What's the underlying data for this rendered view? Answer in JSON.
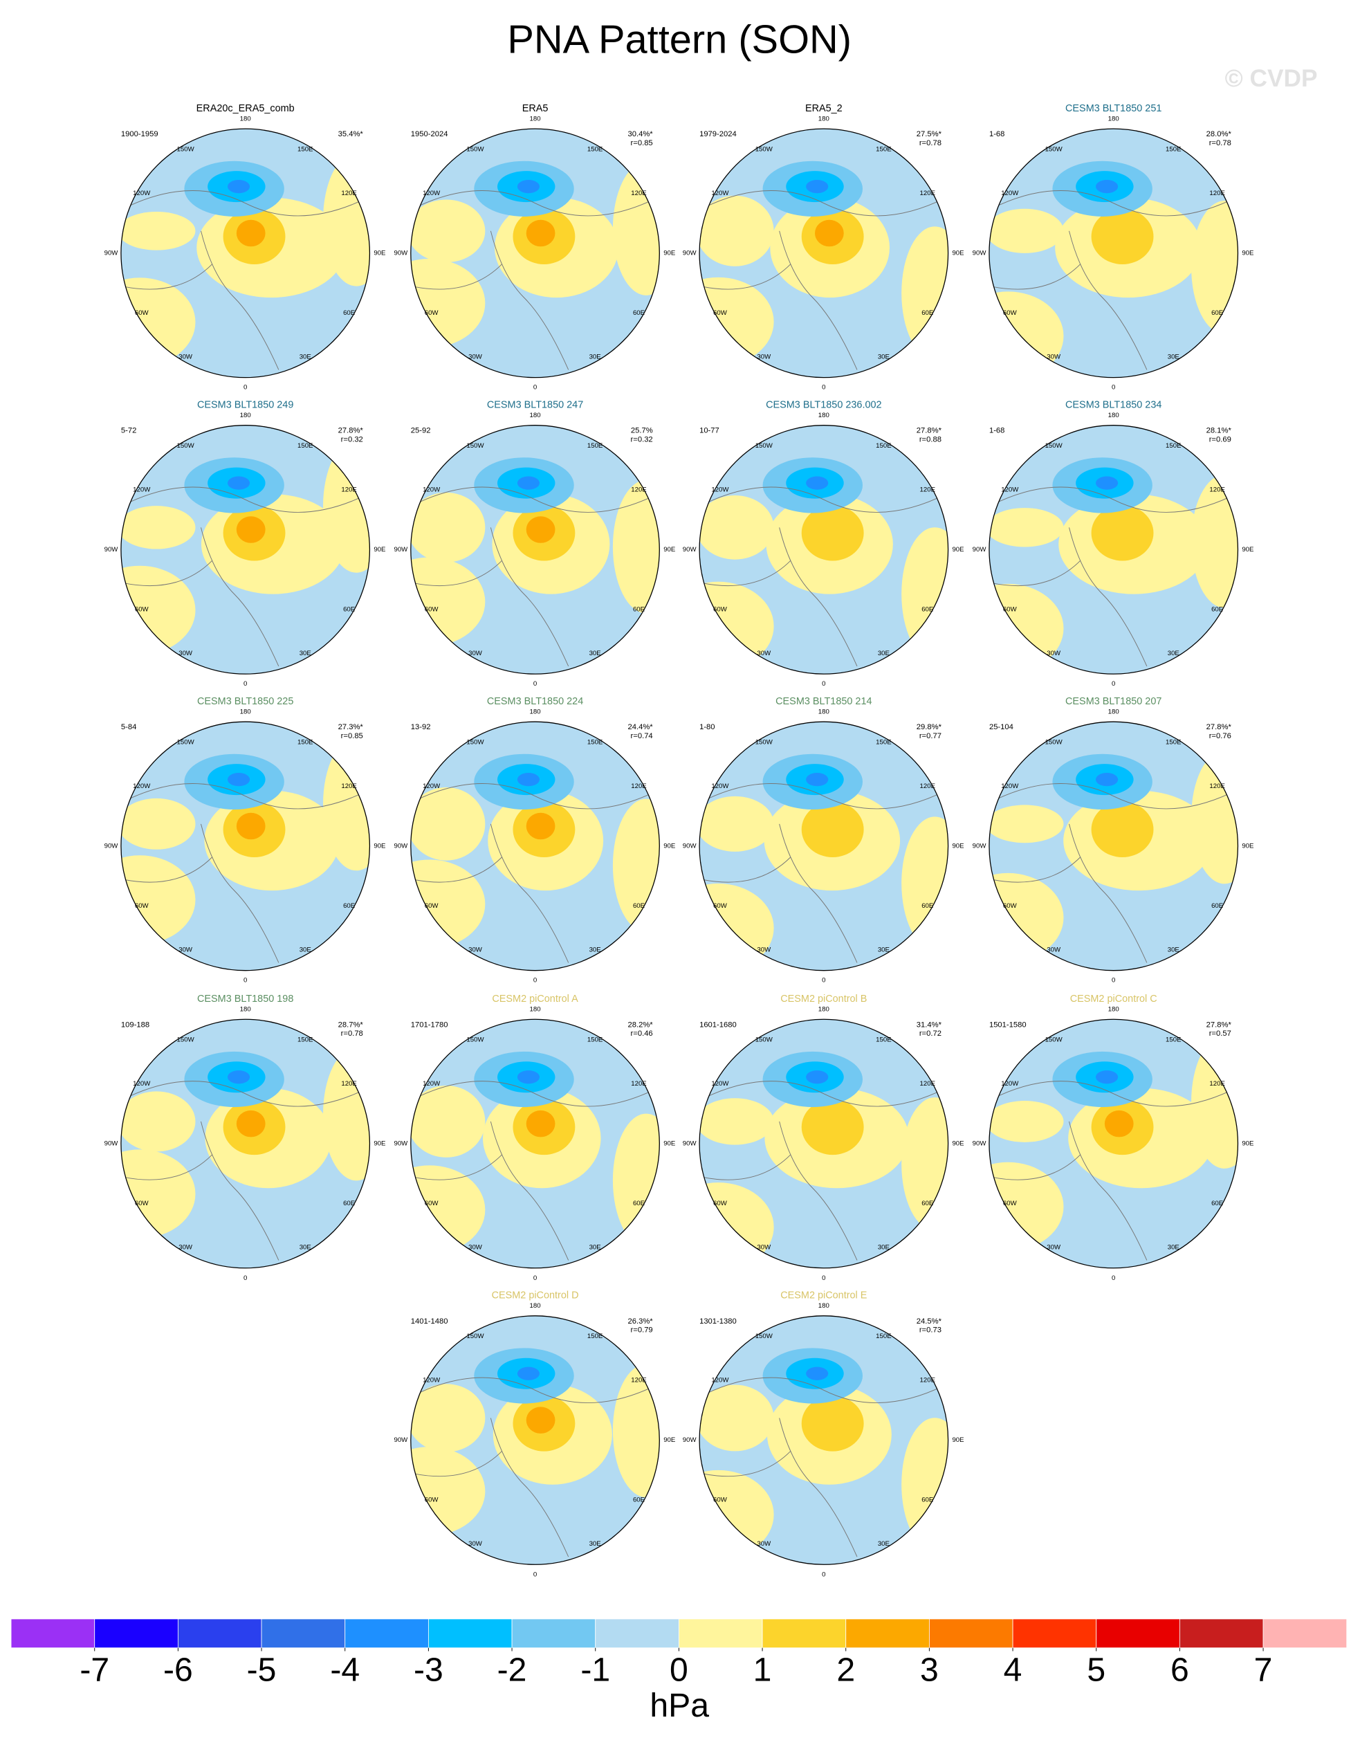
{
  "title": "PNA Pattern (SON)",
  "watermark": "© CVDP",
  "lon_labels": [
    "180",
    "150E",
    "120E",
    "90E",
    "60E",
    "30E",
    "0",
    "30W",
    "60W",
    "90W",
    "120W",
    "150W"
  ],
  "panels": [
    {
      "title": "ERA20c_ERA5_comb",
      "title_color": "#000000",
      "years": "1900-1959",
      "pct": "35.4%*"
    },
    {
      "title": "ERA5",
      "title_color": "#000000",
      "years": "1950-2024",
      "pct": "30.4%*",
      "r": "r=0.85"
    },
    {
      "title": "ERA5_2",
      "title_color": "#000000",
      "years": "1979-2024",
      "pct": "27.5%*",
      "r": "r=0.78"
    },
    {
      "title": "CESM3 BLT1850 251",
      "title_color": "#1f6f8b",
      "years": "1-68",
      "pct": "28.0%*",
      "r": "r=0.78"
    },
    {
      "title": "CESM3 BLT1850 249",
      "title_color": "#1f6f8b",
      "years": "5-72",
      "pct": "27.8%*",
      "r": "r=0.32"
    },
    {
      "title": "CESM3 BLT1850 247",
      "title_color": "#1f6f8b",
      "years": "25-92",
      "pct": "25.7%",
      "r": "r=0.32"
    },
    {
      "title": "CESM3 BLT1850 236.002",
      "title_color": "#1f6f8b",
      "years": "10-77",
      "pct": "27.8%*",
      "r": "r=0.88"
    },
    {
      "title": "CESM3 BLT1850 234",
      "title_color": "#1f6f8b",
      "years": "1-68",
      "pct": "28.1%*",
      "r": "r=0.69"
    },
    {
      "title": "CESM3 BLT1850 225",
      "title_color": "#5b8f62",
      "years": "5-84",
      "pct": "27.3%*",
      "r": "r=0.85"
    },
    {
      "title": "CESM3 BLT1850 224",
      "title_color": "#5b8f62",
      "years": "13-92",
      "pct": "24.4%*",
      "r": "r=0.74"
    },
    {
      "title": "CESM3 BLT1850 214",
      "title_color": "#5b8f62",
      "years": "1-80",
      "pct": "29.8%*",
      "r": "r=0.77"
    },
    {
      "title": "CESM3 BLT1850 207",
      "title_color": "#5b8f62",
      "years": "25-104",
      "pct": "27.8%*",
      "r": "r=0.76"
    },
    {
      "title": "CESM3 BLT1850 198",
      "title_color": "#5b8f62",
      "years": "109-188",
      "pct": "28.7%*",
      "r": "r=0.78"
    },
    {
      "title": "CESM2 piControl A",
      "title_color": "#d8c466",
      "years": "1701-1780",
      "pct": "28.2%*",
      "r": "r=0.46"
    },
    {
      "title": "CESM2 piControl B",
      "title_color": "#d8c466",
      "years": "1601-1680",
      "pct": "31.4%*",
      "r": "r=0.72"
    },
    {
      "title": "CESM2 piControl C",
      "title_color": "#d8c466",
      "years": "1501-1580",
      "pct": "27.8%*",
      "r": "r=0.57"
    },
    {
      "title": "CESM2 piControl D",
      "title_color": "#d8c466",
      "years": "1401-1480",
      "pct": "26.3%*",
      "r": "r=0.79"
    },
    {
      "title": "CESM2 piControl E",
      "title_color": "#d8c466",
      "years": "1301-1380",
      "pct": "24.5%*",
      "r": "r=0.73"
    }
  ],
  "colorbar": {
    "colors": [
      "#9b30f5",
      "#1a00ff",
      "#2a40ee",
      "#3070e8",
      "#1e90ff",
      "#00bfff",
      "#72c8f2",
      "#b3dbf2",
      "#fff59c",
      "#fcd42c",
      "#fca800",
      "#fc7a00",
      "#ff3300",
      "#e80000",
      "#c81e1e",
      "#ffb3b3"
    ],
    "ticks": [
      -7,
      -6,
      -5,
      -4,
      -3,
      -2,
      -1,
      0,
      1,
      2,
      3,
      4,
      5,
      6,
      7
    ],
    "label": "hPa"
  }
}
